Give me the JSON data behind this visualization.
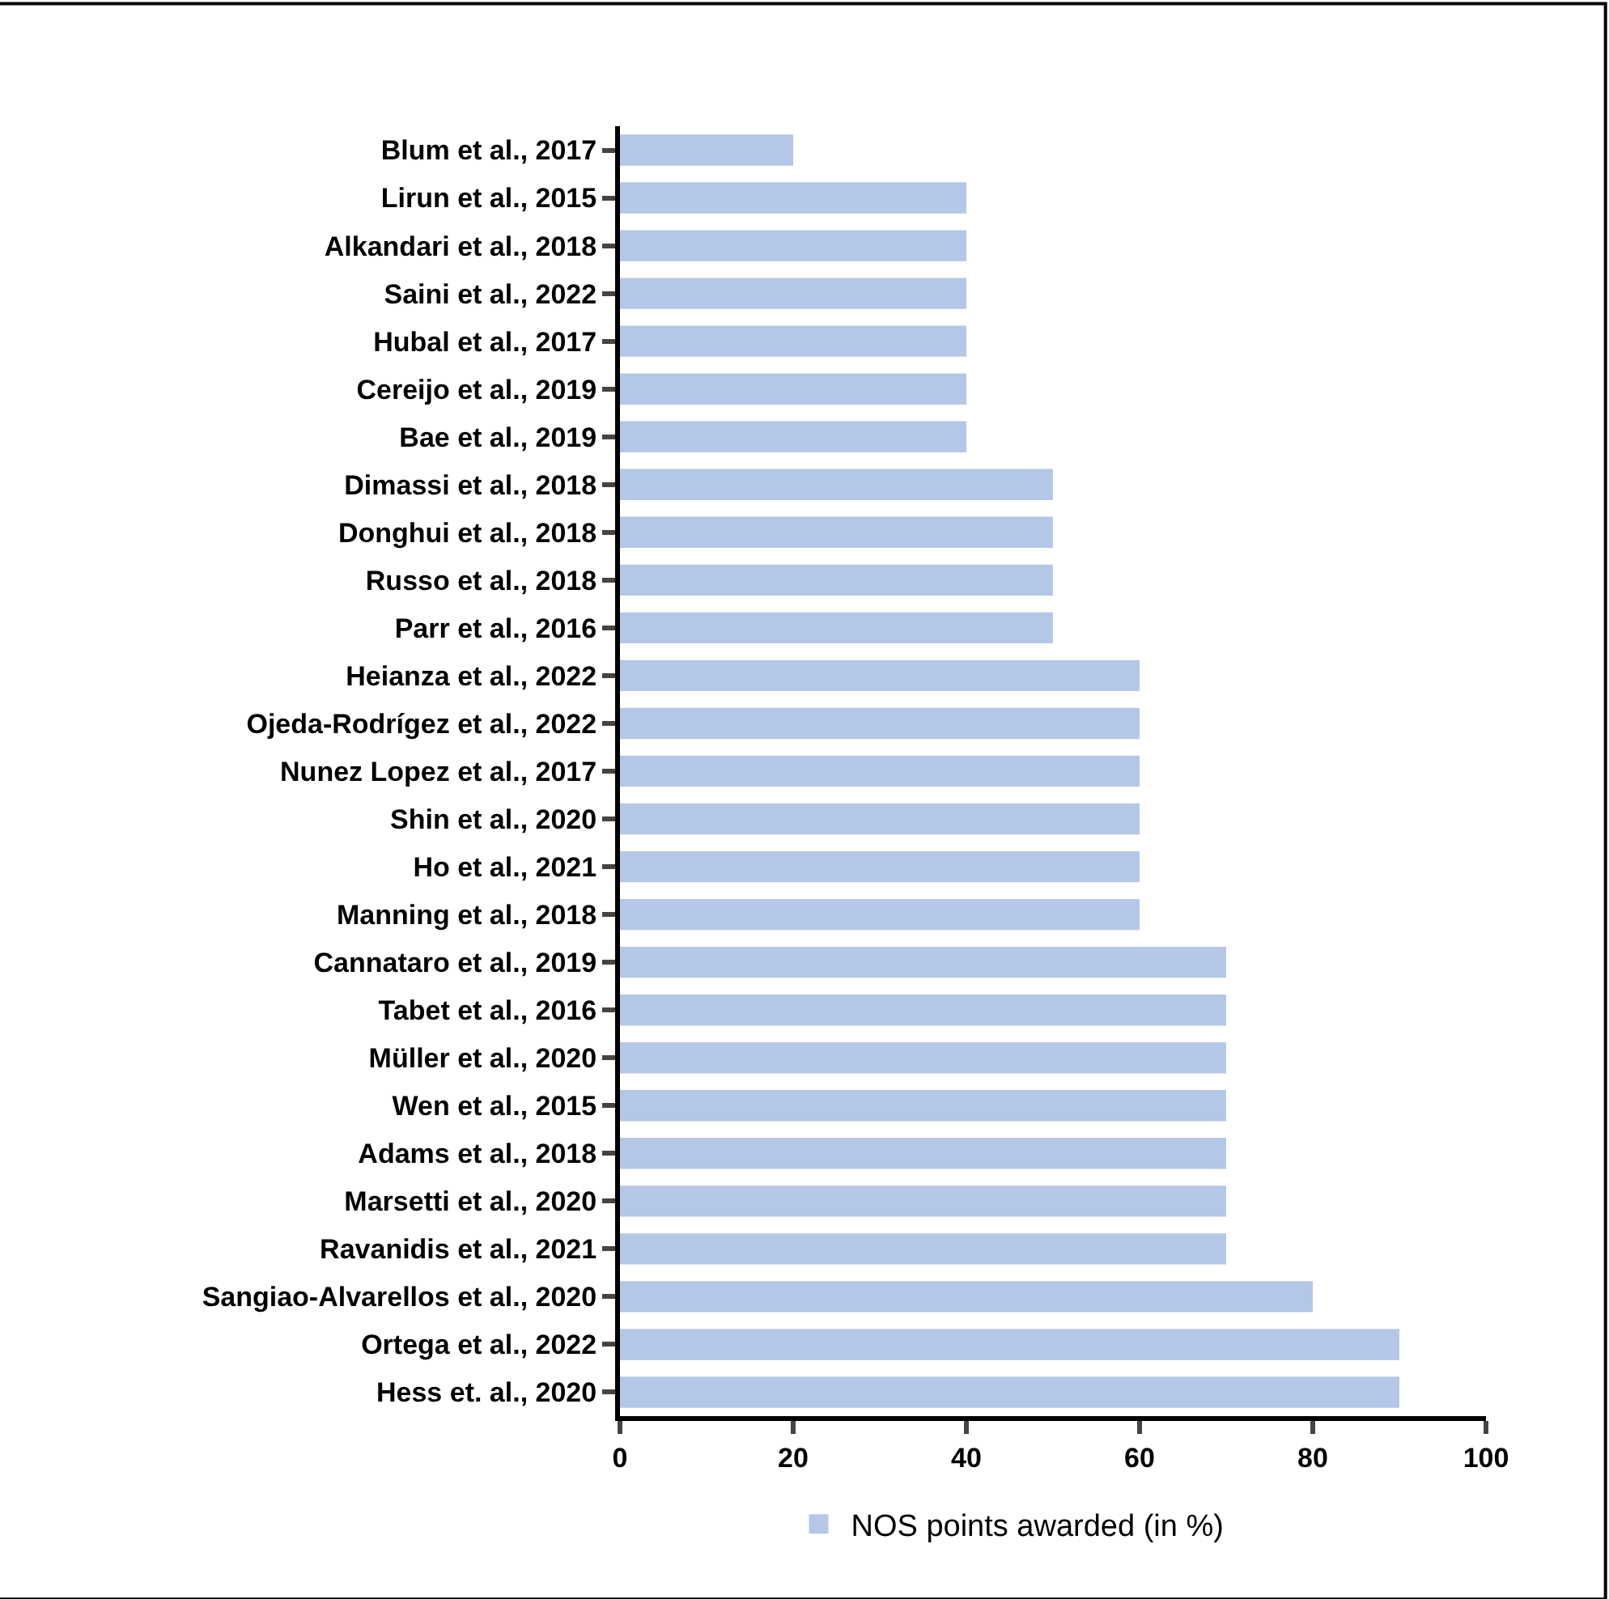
{
  "chart_data": {
    "type": "bar",
    "orientation": "horizontal",
    "categories": [
      "Blum et al., 2017",
      "Lirun et al., 2015",
      "Alkandari et al., 2018",
      "Saini et al., 2022",
      "Hubal et al., 2017",
      "Cereijo et al., 2019",
      "Bae et al., 2019",
      "Dimassi et al., 2018",
      "Donghui et al., 2018",
      "Russo et al., 2018",
      "Parr et al., 2016",
      "Heianza et al., 2022",
      "Ojeda-Rodrígez et al., 2022",
      "Nunez Lopez et al., 2017",
      "Shin et al., 2020",
      "Ho et al., 2021",
      "Manning et al., 2018",
      "Cannataro et al., 2019",
      "Tabet et al., 2016",
      "Müller et al., 2020",
      "Wen et al., 2015",
      "Adams et al., 2018",
      "Marsetti et al., 2020",
      "Ravanidis et al., 2021",
      "Sangiao-Alvarellos et al., 2020",
      "Ortega et al., 2022",
      "Hess et. al., 2020"
    ],
    "series": [
      {
        "name": "NOS points awarded (in %)",
        "color": "#b4c7e7",
        "values": [
          20,
          40,
          40,
          40,
          40,
          40,
          40,
          50,
          50,
          50,
          50,
          60,
          60,
          60,
          60,
          60,
          60,
          70,
          70,
          70,
          70,
          70,
          70,
          70,
          80,
          90,
          90
        ]
      }
    ],
    "xlim": [
      0,
      100
    ],
    "xticks": [
      0,
      20,
      40,
      60,
      80,
      100
    ],
    "legend": "bottom"
  }
}
